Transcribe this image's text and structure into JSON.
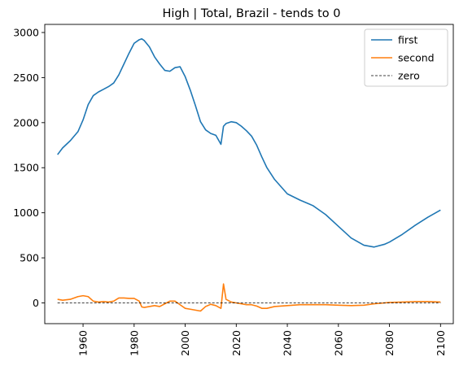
{
  "chart_data": {
    "type": "line",
    "title": "High | Total, Brazil  - tends to 0",
    "xlabel": "",
    "ylabel": "",
    "xlim": [
      1945,
      2105
    ],
    "ylim": [
      -230,
      3090
    ],
    "x_ticks": [
      1960,
      1980,
      2000,
      2020,
      2040,
      2060,
      2080,
      2100
    ],
    "y_ticks": [
      0,
      500,
      1000,
      1500,
      2000,
      2500,
      3000
    ],
    "x_tick_labels": [
      "1960",
      "1980",
      "2000",
      "2020",
      "2040",
      "2060",
      "2080",
      "2100"
    ],
    "y_tick_labels": [
      "0",
      "500",
      "1000",
      "1500",
      "2000",
      "2500",
      "3000"
    ],
    "grid": false,
    "legend_position": "top-right",
    "series": [
      {
        "name": "first",
        "color": "#1f77b4",
        "style": "solid",
        "x": [
          1950,
          1952,
          1955,
          1958,
          1960,
          1962,
          1964,
          1966,
          1968,
          1970,
          1972,
          1974,
          1976,
          1978,
          1980,
          1982,
          1983,
          1984,
          1986,
          1988,
          1990,
          1992,
          1994,
          1996,
          1998,
          2000,
          2002,
          2004,
          2006,
          2008,
          2010,
          2012,
          2014,
          2015,
          2016,
          2018,
          2020,
          2022,
          2024,
          2026,
          2028,
          2030,
          2032,
          2035,
          2040,
          2045,
          2050,
          2055,
          2060,
          2065,
          2070,
          2074,
          2078,
          2080,
          2085,
          2090,
          2095,
          2100
        ],
        "values": [
          1645,
          1720,
          1800,
          1900,
          2030,
          2200,
          2300,
          2340,
          2370,
          2400,
          2440,
          2530,
          2650,
          2770,
          2880,
          2920,
          2930,
          2910,
          2840,
          2730,
          2650,
          2580,
          2570,
          2610,
          2620,
          2510,
          2360,
          2190,
          2010,
          1920,
          1880,
          1860,
          1760,
          1960,
          1990,
          2010,
          2000,
          1960,
          1910,
          1850,
          1750,
          1620,
          1500,
          1370,
          1210,
          1140,
          1080,
          980,
          850,
          720,
          640,
          620,
          650,
          675,
          760,
          860,
          950,
          1030
        ]
      },
      {
        "name": "second",
        "color": "#ff7f0e",
        "style": "solid",
        "x": [
          1950,
          1952,
          1955,
          1958,
          1960,
          1962,
          1964,
          1966,
          1968,
          1970,
          1972,
          1974,
          1976,
          1978,
          1980,
          1982,
          1983,
          1984,
          1986,
          1988,
          1990,
          1992,
          1994,
          1996,
          1998,
          2000,
          2002,
          2004,
          2006,
          2008,
          2010,
          2012,
          2014,
          2015,
          2016,
          2018,
          2020,
          2022,
          2024,
          2026,
          2028,
          2030,
          2032,
          2035,
          2040,
          2045,
          2050,
          2055,
          2060,
          2065,
          2070,
          2074,
          2078,
          2080,
          2085,
          2090,
          2095,
          2100
        ],
        "values": [
          40,
          30,
          40,
          70,
          80,
          70,
          20,
          10,
          15,
          10,
          20,
          55,
          55,
          50,
          50,
          20,
          -45,
          -50,
          -40,
          -30,
          -40,
          -10,
          20,
          20,
          -20,
          -60,
          -70,
          -80,
          -90,
          -40,
          -15,
          -30,
          -60,
          210,
          40,
          10,
          0,
          -10,
          -20,
          -20,
          -35,
          -60,
          -60,
          -40,
          -30,
          -20,
          -20,
          -20,
          -25,
          -30,
          -25,
          -10,
          0,
          5,
          10,
          15,
          15,
          10
        ]
      },
      {
        "name": "zero",
        "color": "#000000",
        "style": "dashed",
        "x": [
          1950,
          2100
        ],
        "values": [
          0,
          0
        ]
      }
    ]
  }
}
